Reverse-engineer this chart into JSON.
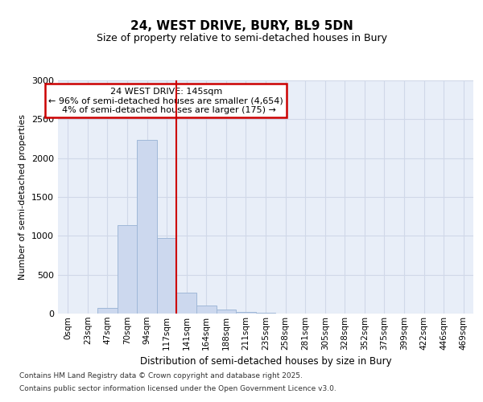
{
  "title": "24, WEST DRIVE, BURY, BL9 5DN",
  "subtitle": "Size of property relative to semi-detached houses in Bury",
  "xlabel": "Distribution of semi-detached houses by size in Bury",
  "ylabel": "Number of semi-detached properties",
  "property_label": "24 WEST DRIVE: 145sqm",
  "pct_smaller": 96,
  "count_smaller": 4654,
  "pct_larger": 4,
  "count_larger": 175,
  "bin_labels": [
    "0sqm",
    "23sqm",
    "47sqm",
    "70sqm",
    "94sqm",
    "117sqm",
    "141sqm",
    "164sqm",
    "188sqm",
    "211sqm",
    "235sqm",
    "258sqm",
    "281sqm",
    "305sqm",
    "328sqm",
    "352sqm",
    "375sqm",
    "399sqm",
    "422sqm",
    "446sqm",
    "469sqm"
  ],
  "bar_values": [
    0,
    0,
    70,
    1140,
    2230,
    970,
    265,
    105,
    50,
    18,
    8,
    3,
    2,
    1,
    0,
    0,
    0,
    0,
    0,
    0,
    0
  ],
  "bar_color": "#ccd8ee",
  "bar_edge_color": "#a0b8d8",
  "vline_color": "#cc0000",
  "annotation_box_color": "#cc0000",
  "ylim": [
    0,
    3000
  ],
  "yticks": [
    0,
    500,
    1000,
    1500,
    2000,
    2500,
    3000
  ],
  "grid_color": "#d0d8e8",
  "bg_color": "#e8eef8",
  "footer_line1": "Contains HM Land Registry data © Crown copyright and database right 2025.",
  "footer_line2": "Contains public sector information licensed under the Open Government Licence v3.0."
}
